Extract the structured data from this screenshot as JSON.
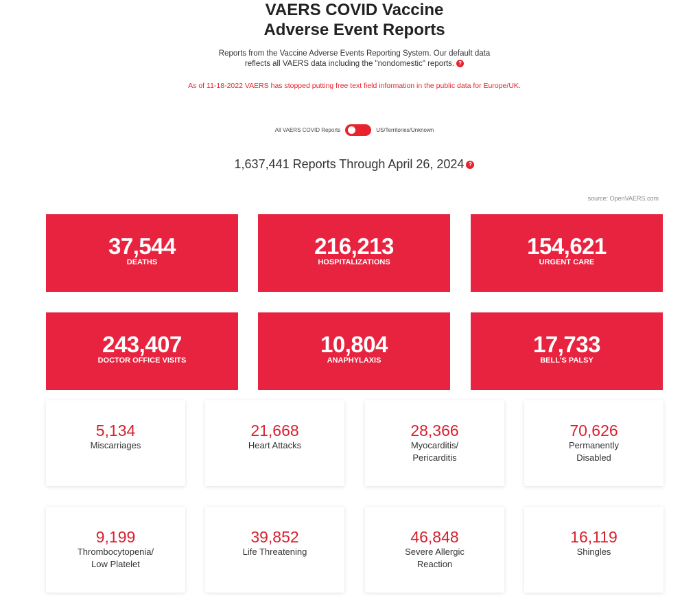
{
  "header": {
    "title_line1": "VAERS COVID Vaccine",
    "title_line2": "Adverse Event Reports",
    "intro_line1": "Reports from the Vaccine Adverse Events Reporting System. Our default data",
    "intro_line2": "reflects all VAERS data including the \"nondomestic\" reports.",
    "help_glyph": "?",
    "notice": "As of 11-18-2022 VAERS has stopped putting free text field information in the public data for Europe/UK."
  },
  "filter": {
    "left_label": "All VAERS COVID Reports",
    "right_label": "US/Territories/Unknown"
  },
  "summary": {
    "reports": "1,637,441 Reports Through April 26, 2024",
    "source": "source: OpenVAERS.com"
  },
  "primary_stats": [
    {
      "value": "37,544",
      "label": "DEATHS"
    },
    {
      "value": "216,213",
      "label": "HOSPITALIZATIONS"
    },
    {
      "value": "154,621",
      "label": "URGENT CARE"
    },
    {
      "value": "243,407",
      "label": "DOCTOR OFFICE VISITS"
    },
    {
      "value": "10,804",
      "label": "ANAPHYLAXIS"
    },
    {
      "value": "17,733",
      "label": "BELL'S PALSY"
    }
  ],
  "secondary_stats": [
    {
      "value": "5,134",
      "label": "Miscarriages"
    },
    {
      "value": "21,668",
      "label": "Heart Attacks"
    },
    {
      "value": "28,366",
      "label": "Myocarditis/\nPericarditis"
    },
    {
      "value": "70,626",
      "label": "Permanently\nDisabled"
    },
    {
      "value": "9,199",
      "label": "Thrombocytopenia/\nLow Platelet"
    },
    {
      "value": "39,852",
      "label": "Life Threatening"
    },
    {
      "value": "46,848",
      "label": "Severe Allergic\nReaction"
    },
    {
      "value": "16,119",
      "label": "Shingles"
    }
  ],
  "colors": {
    "accent_red": "#e8233f",
    "number_red": "#d8202f"
  }
}
